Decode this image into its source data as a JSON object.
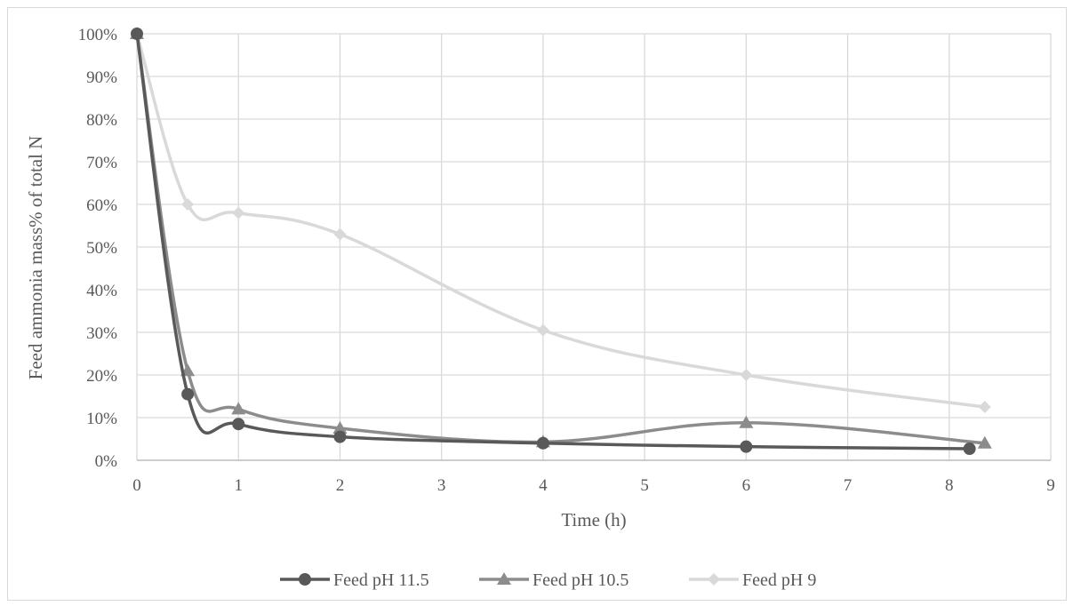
{
  "chart_data": {
    "type": "scatter",
    "title": "",
    "xlabel": "Time (h)",
    "ylabel": "Feed ammonia mass% of total N",
    "xlim": [
      0,
      9
    ],
    "ylim": [
      0,
      1
    ],
    "xticks": [
      0,
      1,
      2,
      3,
      4,
      5,
      6,
      7,
      8,
      9
    ],
    "yticks": [
      0,
      0.1,
      0.2,
      0.3,
      0.4,
      0.5,
      0.6,
      0.7,
      0.8,
      0.9,
      1.0
    ],
    "ytick_format": "percent",
    "grid": true,
    "smooth_lines": true,
    "legend_position": "bottom",
    "series": [
      {
        "name": "Feed pH 11.5",
        "marker": "circle",
        "color": "#595959",
        "x": [
          0,
          0.5,
          1,
          2,
          4,
          6,
          8.2
        ],
        "y": [
          1.0,
          0.155,
          0.085,
          0.055,
          0.04,
          0.032,
          0.027
        ]
      },
      {
        "name": "Feed pH 10.5",
        "marker": "triangle",
        "color": "#8c8c8c",
        "x": [
          0,
          0.5,
          1,
          2,
          4,
          6,
          8.35
        ],
        "y": [
          1.0,
          0.21,
          0.12,
          0.075,
          0.043,
          0.088,
          0.04
        ]
      },
      {
        "name": "Feed pH 9",
        "marker": "diamond",
        "color": "#d9d9d9",
        "x": [
          0,
          0.5,
          1,
          2,
          4,
          6,
          8.35
        ],
        "y": [
          1.0,
          0.6,
          0.58,
          0.53,
          0.305,
          0.2,
          0.125
        ]
      }
    ]
  }
}
